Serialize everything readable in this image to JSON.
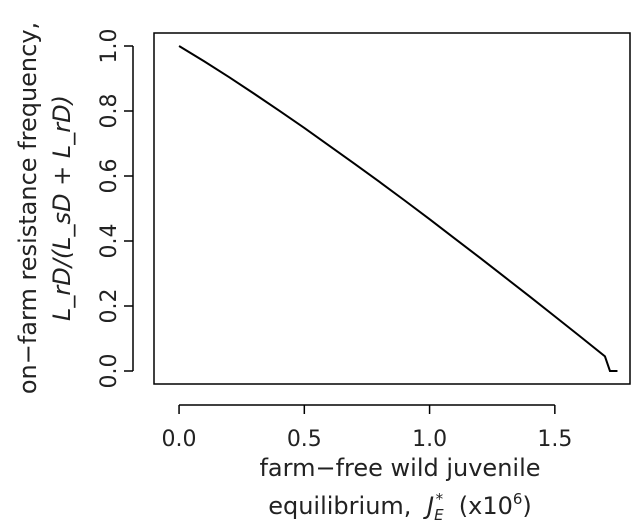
{
  "chart_data": {
    "type": "line",
    "xlabel_line1": "farm−free wild juvenile",
    "xlabel_line2_prefix": "equilibrium,",
    "xlabel_symbol": "J",
    "xlabel_sub": "E",
    "xlabel_sup": "*",
    "xlabel_suffix_open": "(x10",
    "xlabel_suffix_exp": "6",
    "xlabel_suffix_close": ")",
    "ylabel_line1": "on−farm resistance frequency,",
    "ylabel_line2": "L_rD/(L_sD + L_rD)",
    "xlim": [
      -0.1,
      1.8
    ],
    "ylim": [
      -0.04,
      1.04
    ],
    "xticks": [
      0.0,
      0.5,
      1.0,
      1.5
    ],
    "xtick_labels": [
      "0.0",
      "0.5",
      "1.0",
      "1.5"
    ],
    "yticks": [
      0.0,
      0.2,
      0.4,
      0.6,
      0.8,
      1.0
    ],
    "ytick_labels": [
      "0.0",
      "0.2",
      "0.4",
      "0.6",
      "0.8",
      "1.0"
    ],
    "series": [
      {
        "x": [
          0.0,
          0.1,
          0.2,
          0.3,
          0.4,
          0.5,
          0.6,
          0.7,
          0.8,
          0.9,
          1.0,
          1.1,
          1.2,
          1.3,
          1.4,
          1.5,
          1.6,
          1.7,
          1.72,
          1.75
        ],
        "y": [
          1.0,
          0.953,
          0.904,
          0.853,
          0.801,
          0.748,
          0.693,
          0.638,
          0.582,
          0.525,
          0.467,
          0.408,
          0.349,
          0.289,
          0.229,
          0.168,
          0.107,
          0.045,
          0.0,
          0.0
        ]
      }
    ],
    "grid": false,
    "color": "#000000"
  }
}
